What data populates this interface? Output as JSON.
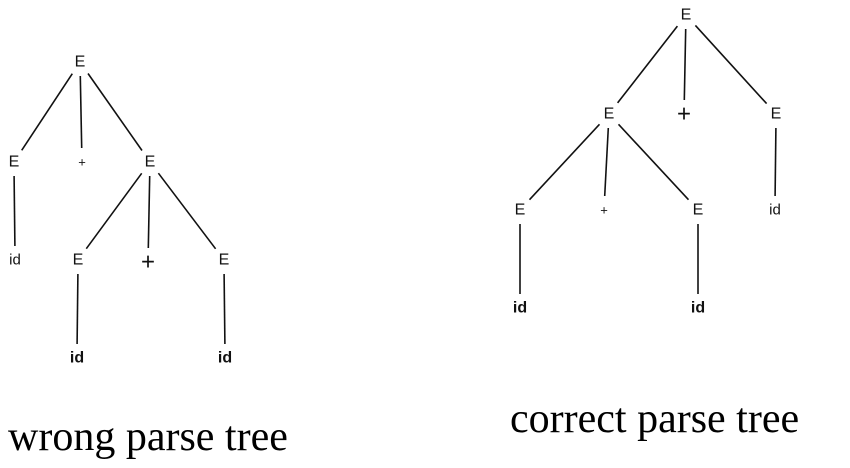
{
  "trees": [
    {
      "caption": "wrong parse tree",
      "nodes": [
        {
          "id": "w0",
          "label": "E"
        },
        {
          "id": "w1",
          "label": "E"
        },
        {
          "id": "w2",
          "label": "+"
        },
        {
          "id": "w3",
          "label": "E"
        },
        {
          "id": "w4",
          "label": "id"
        },
        {
          "id": "w5",
          "label": "E"
        },
        {
          "id": "w6",
          "label": "+"
        },
        {
          "id": "w7",
          "label": "E"
        },
        {
          "id": "w8",
          "label": "id"
        },
        {
          "id": "w9",
          "label": "id"
        }
      ],
      "edges": [
        [
          "w0",
          "w1"
        ],
        [
          "w0",
          "w2"
        ],
        [
          "w0",
          "w3"
        ],
        [
          "w1",
          "w4"
        ],
        [
          "w3",
          "w5"
        ],
        [
          "w3",
          "w6"
        ],
        [
          "w3",
          "w7"
        ],
        [
          "w5",
          "w8"
        ],
        [
          "w7",
          "w9"
        ]
      ]
    },
    {
      "caption": "correct parse tree",
      "nodes": [
        {
          "id": "c0",
          "label": "E"
        },
        {
          "id": "c1",
          "label": "E"
        },
        {
          "id": "c2",
          "label": "+"
        },
        {
          "id": "c3",
          "label": "E"
        },
        {
          "id": "c4",
          "label": "E"
        },
        {
          "id": "c5",
          "label": "+"
        },
        {
          "id": "c6",
          "label": "E"
        },
        {
          "id": "c7",
          "label": "id"
        },
        {
          "id": "c8",
          "label": "id"
        },
        {
          "id": "c9",
          "label": "id"
        }
      ],
      "edges": [
        [
          "c0",
          "c1"
        ],
        [
          "c0",
          "c2"
        ],
        [
          "c0",
          "c3"
        ],
        [
          "c1",
          "c4"
        ],
        [
          "c1",
          "c5"
        ],
        [
          "c1",
          "c6"
        ],
        [
          "c3",
          "c7"
        ],
        [
          "c4",
          "c8"
        ],
        [
          "c6",
          "c9"
        ]
      ]
    }
  ]
}
